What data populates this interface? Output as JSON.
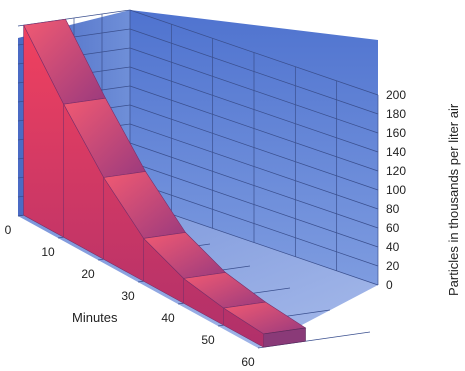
{
  "chart_data": {
    "type": "area",
    "view": "3d",
    "title": "",
    "xlabel": "Minutes",
    "ylabel": "Particles in thousands per liter air",
    "x_ticks": [
      "0",
      "10",
      "20",
      "30",
      "40",
      "50",
      "60"
    ],
    "y_ticks": [
      "0",
      "20",
      "40",
      "60",
      "80",
      "100",
      "120",
      "140",
      "160",
      "180",
      "200"
    ],
    "ylim": [
      0,
      200
    ],
    "xlim": [
      0,
      60
    ],
    "grid": true,
    "series": [
      {
        "x": [
          0,
          10,
          20,
          30,
          40,
          50,
          60
        ],
        "y": [
          200,
          140,
          86,
          45,
          26,
          18,
          14
        ]
      }
    ],
    "colors": {
      "area_front": "#e0335a",
      "area_top": "#e8506a",
      "area_side": "#8a3a78",
      "wall": "#5b7fd4",
      "floor": "#6f8fd8",
      "grid": "#3a4f8e"
    }
  }
}
